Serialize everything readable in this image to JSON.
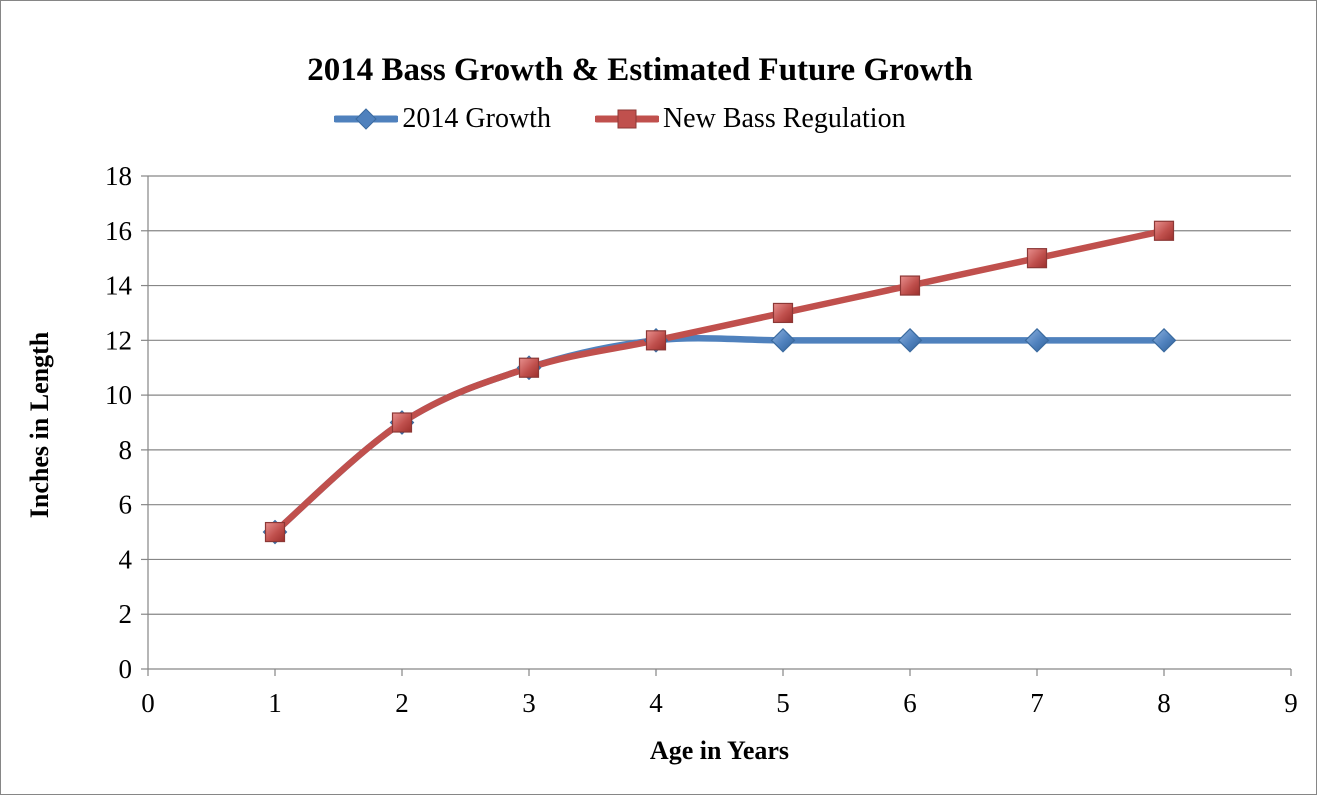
{
  "chart_data": {
    "type": "line",
    "title": "2014 Bass Growth & Estimated Future Growth",
    "xlabel": "Age in Years",
    "ylabel": "Inches in Length",
    "xlim": [
      0,
      9
    ],
    "ylim": [
      0,
      18
    ],
    "x_ticks": [
      "0",
      "1",
      "2",
      "3",
      "4",
      "5",
      "6",
      "7",
      "8",
      "9"
    ],
    "y_ticks": [
      "0",
      "2",
      "4",
      "6",
      "8",
      "10",
      "12",
      "14",
      "16",
      "18"
    ],
    "grid": "horizontal",
    "legend_position": "top",
    "series": [
      {
        "name": "2014 Growth",
        "color": "#4F81BD",
        "marker": "diamond",
        "x": [
          1,
          2,
          3,
          4,
          5,
          6,
          7,
          8
        ],
        "values": [
          5,
          9,
          11,
          12,
          12,
          12,
          12,
          12
        ]
      },
      {
        "name": "New Bass Regulation",
        "color": "#C0504D",
        "marker": "square",
        "x": [
          1,
          2,
          3,
          4,
          5,
          6,
          7,
          8
        ],
        "values": [
          5,
          9,
          11,
          12,
          13,
          14,
          15,
          16
        ]
      }
    ]
  }
}
